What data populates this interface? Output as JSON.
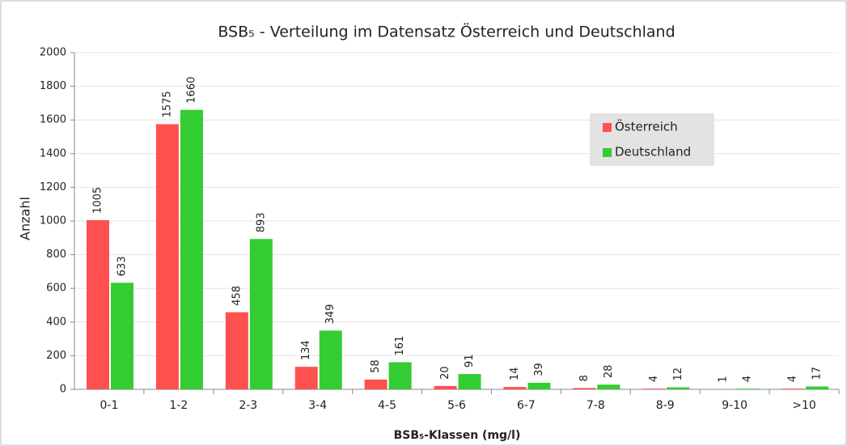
{
  "chart_data": {
    "type": "bar",
    "title": "BSB₅ - Verteilung im Datensatz Österreich und Deutschland",
    "x_label": "BSB₅-Klassen (mg/l)",
    "y_label": "Anzahl",
    "categories": [
      "0-1",
      "1-2",
      "2-3",
      "3-4",
      "4-5",
      "5-6",
      "6-7",
      "7-8",
      "8-9",
      "9-10",
      ">10"
    ],
    "series": [
      {
        "name": "Österreich",
        "color": "#ff5050",
        "values": [
          1005,
          1575,
          458,
          134,
          58,
          20,
          14,
          8,
          4,
          1,
          4
        ]
      },
      {
        "name": "Deutschland",
        "color": "#33cc33",
        "values": [
          633,
          1660,
          893,
          349,
          161,
          91,
          39,
          28,
          12,
          4,
          17
        ]
      }
    ],
    "ylim": [
      0,
      2000
    ],
    "yticks": [
      0,
      200,
      400,
      600,
      800,
      1000,
      1200,
      1400,
      1600,
      1800,
      2000
    ],
    "grid": true,
    "legend": "upper right"
  }
}
